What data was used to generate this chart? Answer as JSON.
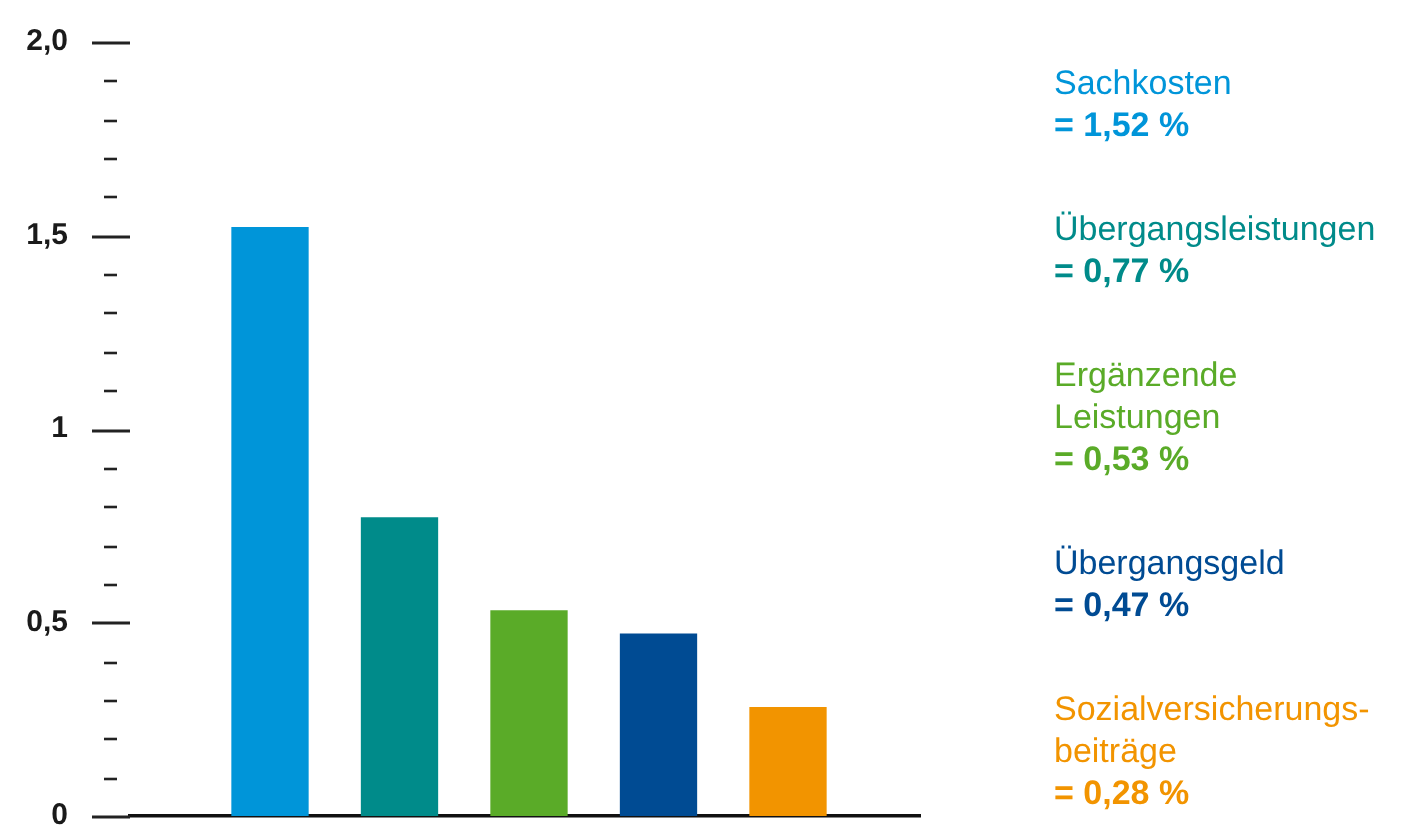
{
  "chart_data": {
    "type": "bar",
    "categories": [
      null,
      null,
      null,
      null,
      null
    ],
    "stacked": true,
    "series": [
      {
        "name": "Sachkosten",
        "color": "#0095d9",
        "values": [
          1.52,
          null,
          null,
          null,
          null
        ]
      },
      {
        "name": "Übergangsleistungen",
        "color": "#008b8a",
        "values": [
          null,
          0.77,
          null,
          null,
          null
        ]
      },
      {
        "name": "Ergänzende Leistungen",
        "color": "#5aab28",
        "values": [
          null,
          null,
          0.53,
          null,
          null
        ]
      },
      {
        "name": "Übergangsgeld",
        "color": "#004b93",
        "values": [
          null,
          null,
          null,
          0.47,
          null
        ]
      },
      {
        "name": "Sozialversicherungs-beiträge",
        "color": "#f29400",
        "values": [
          null,
          null,
          null,
          null,
          0.28
        ]
      }
    ],
    "annotations": [
      "= 1,52 %",
      "= 0,77 %",
      "= 0,53 %",
      "= 0,47 %",
      "= 0,28 %"
    ],
    "ylim": [
      0,
      2
    ],
    "yticks": [
      {
        "value": 0,
        "label": "0"
      },
      {
        "value": 0.1,
        "label": null
      },
      {
        "value": 0.2,
        "label": null
      },
      {
        "value": 0.3,
        "label": null
      },
      {
        "value": 0.4,
        "label": null
      },
      {
        "value": 0.5,
        "label": "0,5"
      },
      {
        "value": 0.6,
        "label": null
      },
      {
        "value": 0.7,
        "label": null
      },
      {
        "value": 0.8,
        "label": null
      },
      {
        "value": 0.9,
        "label": null
      },
      {
        "value": 1,
        "label": "1"
      },
      {
        "value": 1.1,
        "label": null
      },
      {
        "value": 1.2,
        "label": null
      },
      {
        "value": 1.3,
        "label": null
      },
      {
        "value": 1.4,
        "label": null
      },
      {
        "value": 1.5,
        "label": "1,5"
      },
      {
        "value": 1.6,
        "label": null
      },
      {
        "value": 1.7,
        "label": null
      },
      {
        "value": 1.8,
        "label": null
      },
      {
        "value": 1.9,
        "label": null
      },
      {
        "value": 2,
        "label": "2,0"
      }
    ]
  }
}
